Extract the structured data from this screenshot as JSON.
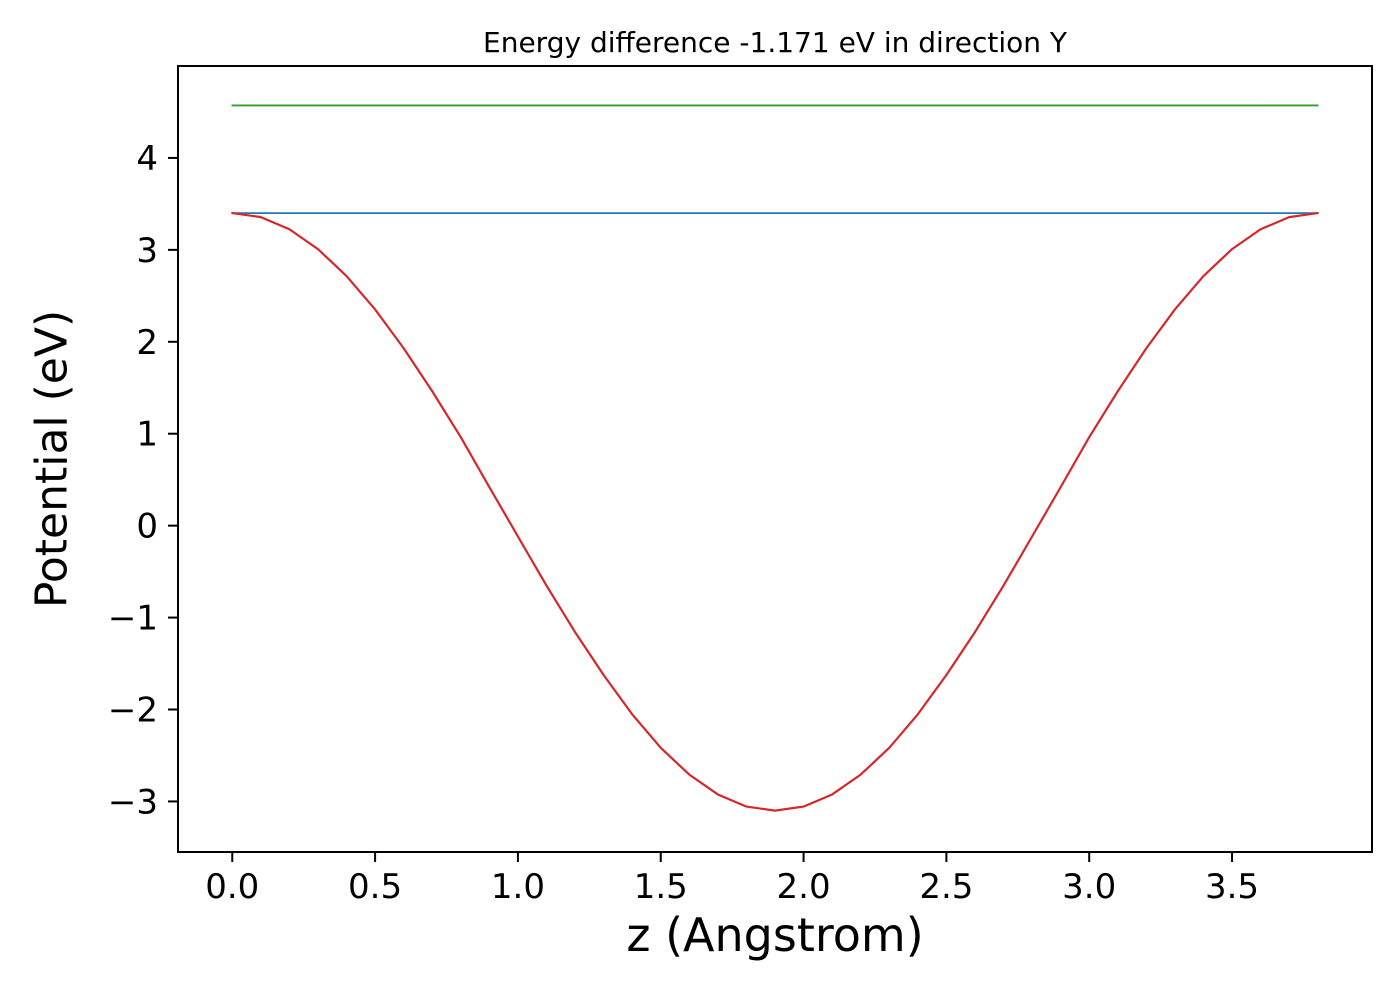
{
  "chart_data": {
    "type": "line",
    "title": "Energy difference -1.171 eV in direction Y",
    "xlabel": "z (Angstrom)",
    "ylabel": "Potential (eV)",
    "xlim": [
      -0.19,
      3.99
    ],
    "ylim": [
      -3.55,
      5.0
    ],
    "xticks": [
      0.0,
      0.5,
      1.0,
      1.5,
      2.0,
      2.5,
      3.0,
      3.5
    ],
    "yticks": [
      -3,
      -2,
      -1,
      0,
      1,
      2,
      3,
      4
    ],
    "grid": false,
    "legend": "none",
    "axis_color": "#000000",
    "background": "#ffffff",
    "series": [
      {
        "name": "upper-flat-level",
        "color": "#2ca02c",
        "width": 1.8,
        "x": [
          0.0,
          3.8
        ],
        "y": [
          4.571,
          4.571
        ]
      },
      {
        "name": "lower-flat-level",
        "color": "#1f77b4",
        "width": 1.8,
        "x": [
          0.0,
          3.8
        ],
        "y": [
          3.4,
          3.4
        ]
      },
      {
        "name": "potential-curve",
        "color": "#d62728",
        "width": 2.2,
        "x": [
          0.0,
          0.1,
          0.2,
          0.3,
          0.4,
          0.5,
          0.6,
          0.7,
          0.8,
          0.9,
          1.0,
          1.1,
          1.2,
          1.3,
          1.4,
          1.5,
          1.6,
          1.7,
          1.8,
          1.9,
          2.0,
          2.1,
          2.2,
          2.3,
          2.4,
          2.5,
          2.6,
          2.7,
          2.8,
          2.9,
          3.0,
          3.1,
          3.2,
          3.3,
          3.4,
          3.5,
          3.6,
          3.7,
          3.8
        ],
        "y": [
          3.4,
          3.356,
          3.224,
          3.008,
          2.715,
          2.352,
          1.93,
          1.462,
          0.962,
          0.419,
          -0.118,
          -0.652,
          -1.158,
          -1.625,
          -2.052,
          -2.417,
          -2.708,
          -2.924,
          -3.056,
          -3.1,
          -3.056,
          -2.924,
          -2.708,
          -2.417,
          -2.052,
          -1.625,
          -1.158,
          -0.652,
          -0.118,
          0.419,
          0.962,
          1.462,
          1.93,
          2.352,
          2.715,
          3.008,
          3.224,
          3.356,
          3.4
        ]
      }
    ]
  }
}
